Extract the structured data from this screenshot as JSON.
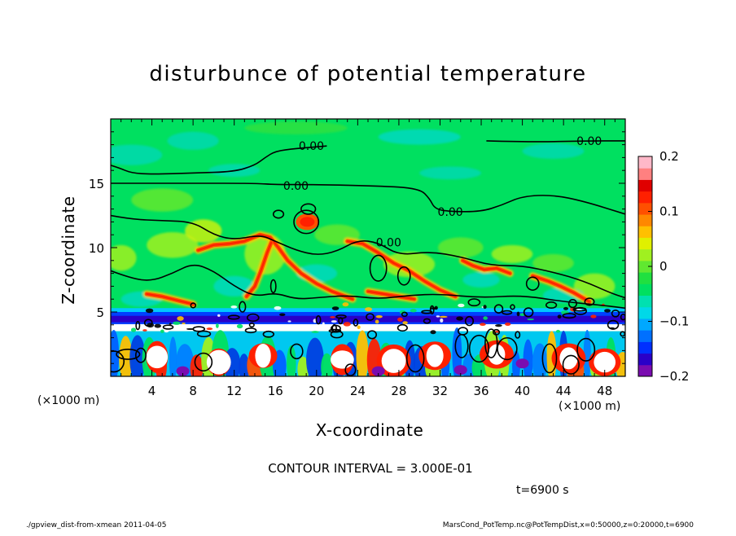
{
  "chart_data": {
    "type": "heatmap",
    "title": "disturbunce of potential temperature",
    "xlabel": "X-coordinate",
    "ylabel": "Z-coordinate",
    "x_unit_label": "(×1000 m)",
    "xlim": [
      0,
      50
    ],
    "ylim": [
      0,
      20
    ],
    "x_ticks": [
      "4",
      "8",
      "12",
      "16",
      "20",
      "24",
      "28",
      "32",
      "36",
      "40",
      "44",
      "48"
    ],
    "x_tick_values": [
      4,
      8,
      12,
      16,
      20,
      24,
      28,
      32,
      36,
      40,
      44,
      48
    ],
    "y_ticks": [
      "5",
      "10",
      "15"
    ],
    "y_tick_values": [
      5,
      10,
      15
    ],
    "colorbar": {
      "range": [
        -0.2,
        0.2
      ],
      "tick_labels": [
        "0.2",
        "0.1",
        "0",
        "−0.1",
        "−0.2"
      ],
      "tick_values": [
        0.2,
        0.1,
        0,
        -0.1,
        -0.2
      ],
      "colors": [
        "#7a0cb0",
        "#2a00c8",
        "#0030ff",
        "#0070ff",
        "#00a8ff",
        "#00d8e8",
        "#00e0b0",
        "#00e060",
        "#20e040",
        "#60e830",
        "#a0f020",
        "#e0f000",
        "#ffc000",
        "#ff8800",
        "#ff5000",
        "#ff2000",
        "#e00000",
        "#ff8080",
        "#ffb8c8"
      ]
    },
    "contour_labels": [
      {
        "text": "0.00",
        "x": 19.5,
        "z": 17.9
      },
      {
        "text": "0.00",
        "x": 46.5,
        "z": 18.3
      },
      {
        "text": "0.00",
        "x": 18.0,
        "z": 14.8
      },
      {
        "text": "0.00",
        "x": 33.0,
        "z": 12.8
      },
      {
        "text": "0.00",
        "x": 27.0,
        "z": 10.4
      }
    ],
    "zero_contours": [
      [
        [
          0,
          16.4
        ],
        [
          0.8,
          16.2
        ],
        [
          2.0,
          15.8
        ],
        [
          4.0,
          15.7
        ],
        [
          8.0,
          15.8
        ],
        [
          12.0,
          15.9
        ],
        [
          14.0,
          16.4
        ],
        [
          15.0,
          17.0
        ],
        [
          16.0,
          17.5
        ],
        [
          18.0,
          17.7
        ],
        [
          21.0,
          17.9
        ]
      ],
      [
        [
          0,
          15.0
        ],
        [
          8.0,
          15.0
        ],
        [
          14.0,
          15.0
        ],
        [
          16.0,
          14.9
        ],
        [
          20.0,
          14.9
        ],
        [
          26.0,
          14.8
        ],
        [
          30.0,
          14.6
        ],
        [
          31.0,
          13.8
        ],
        [
          31.5,
          13.0
        ],
        [
          33.0,
          12.8
        ],
        [
          36.0,
          12.8
        ],
        [
          38.0,
          13.3
        ],
        [
          40.0,
          14.0
        ],
        [
          43.0,
          14.1
        ],
        [
          46.0,
          13.6
        ],
        [
          50,
          12.6
        ]
      ],
      [
        [
          36.5,
          18.3
        ],
        [
          41.0,
          18.2
        ],
        [
          46.0,
          18.3
        ],
        [
          50,
          18.3
        ]
      ],
      [
        [
          0,
          12.5
        ],
        [
          2.0,
          12.2
        ],
        [
          5.0,
          12.1
        ],
        [
          8.0,
          12.0
        ],
        [
          10.0,
          11.0
        ],
        [
          12.0,
          10.6
        ],
        [
          14.5,
          11.0
        ],
        [
          16.0,
          10.5
        ],
        [
          18.0,
          9.8
        ],
        [
          20.0,
          9.4
        ],
        [
          22.0,
          9.7
        ],
        [
          24.0,
          10.6
        ],
        [
          26.0,
          10.4
        ],
        [
          28.0,
          9.4
        ],
        [
          31.0,
          9.7
        ],
        [
          34.0,
          9.3
        ],
        [
          37.0,
          8.6
        ],
        [
          40.0,
          8.6
        ],
        [
          43.0,
          8.1
        ],
        [
          46.0,
          7.4
        ],
        [
          48.5,
          6.5
        ],
        [
          50,
          6.1
        ]
      ],
      [
        [
          0,
          8.2
        ],
        [
          2.0,
          7.6
        ],
        [
          4.0,
          7.4
        ],
        [
          6.0,
          8.0
        ],
        [
          8.0,
          8.8
        ],
        [
          10.0,
          8.2
        ],
        [
          12.0,
          7.0
        ],
        [
          14.0,
          6.2
        ],
        [
          16.0,
          6.5
        ],
        [
          18.0,
          6.0
        ],
        [
          20.0,
          6.1
        ],
        [
          23.0,
          6.3
        ],
        [
          26.0,
          6.0
        ],
        [
          29.0,
          6.3
        ],
        [
          32.0,
          6.4
        ],
        [
          36.0,
          6.1
        ],
        [
          40.0,
          6.3
        ],
        [
          44.0,
          5.8
        ],
        [
          48.0,
          5.5
        ],
        [
          50,
          5.3
        ]
      ]
    ],
    "zero_contour_loops": [
      {
        "x": 19.0,
        "z": 12.0,
        "rx": 1.2,
        "rz": 0.9
      },
      {
        "x": 19.2,
        "z": 13.0,
        "rx": 0.7,
        "rz": 0.4
      },
      {
        "x": 16.3,
        "z": 12.6,
        "rx": 0.5,
        "rz": 0.3
      },
      {
        "x": 26.0,
        "z": 8.4,
        "rx": 0.8,
        "rz": 1.0
      },
      {
        "x": 28.5,
        "z": 7.8,
        "rx": 0.6,
        "rz": 0.7
      },
      {
        "x": 41.0,
        "z": 7.2,
        "rx": 0.6,
        "rz": 0.5
      },
      {
        "x": 15.8,
        "z": 7.0,
        "rx": 0.25,
        "rz": 0.5
      },
      {
        "x": 12.8,
        "z": 5.4,
        "rx": 0.3,
        "rz": 0.4
      }
    ],
    "contour_interval_text": "CONTOUR INTERVAL = 3.000E-01",
    "time_text": "t=6900 s",
    "colors": {
      "base": "#00e060",
      "frame": "#000000",
      "contour": "#000000"
    }
  },
  "footer": {
    "left": "./gpview_dist-from-xmean   2011-04-05",
    "right": "MarsCond_PotTemp.nc@PotTempDist,x=0:50000,z=0:20000,t=6900"
  }
}
